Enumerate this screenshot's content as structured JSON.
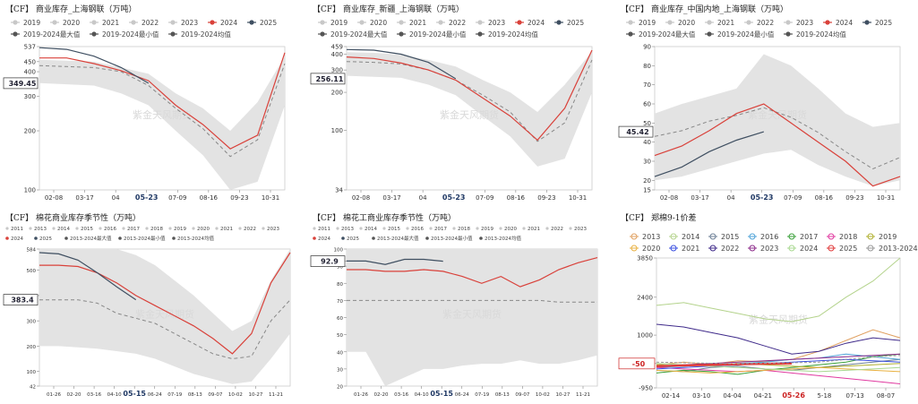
{
  "charts": [
    {
      "id": "c1",
      "title": "【CF】 商业库存_上海钢联（万吨）",
      "ytick_labels": [
        "537",
        "450",
        "400",
        "300",
        "200",
        "100"
      ],
      "current_label": "349.45",
      "xtick_labels": [
        "02-08",
        "03-17",
        "04",
        "05-23",
        "07-09",
        "08-16",
        "09-23",
        "10-31"
      ],
      "highlight_xtick": "05-23",
      "watermark": "紫金天风期货",
      "legend_row1": [
        "2019",
        "2020",
        "2021",
        "2022",
        "2023",
        "2024",
        "2025"
      ],
      "legend_row2": [
        "2019-2024最大值",
        "2019-2024最小值",
        "2019-2024均值"
      ]
    },
    {
      "id": "c2",
      "title": "【CF】 商业库存_新疆_上海钢联（万吨）",
      "ytick_labels": [
        "459",
        "400",
        "300",
        "200",
        "100",
        "34"
      ],
      "current_label": "256.11",
      "xtick_labels": [
        "02-08",
        "03-17",
        "04",
        "05-23",
        "07-09",
        "08-16",
        "09-23",
        "10-31"
      ],
      "highlight_xtick": "05-23",
      "watermark": "紫金天风期货",
      "legend_row1": [
        "2019",
        "2020",
        "2021",
        "2022",
        "2023",
        "2024",
        "2025"
      ],
      "legend_row2": [
        "2019-2024最大值",
        "2019-2024最小值",
        "2019-2024均值"
      ]
    },
    {
      "id": "c3",
      "title": "【CF】 商业库存_中国内地_上海钢联（万吨）",
      "ytick_labels": [
        "90",
        "80",
        "70",
        "60",
        "50",
        "40",
        "30",
        "20",
        "15"
      ],
      "current_label": "45.42",
      "xtick_labels": [
        "02-08",
        "03-17",
        "04",
        "05-23",
        "07-09",
        "08-16",
        "09-23",
        "10-31"
      ],
      "highlight_xtick": "05-23",
      "watermark": "紫金天风期货",
      "legend_row1": [
        "2019",
        "2020",
        "2021",
        "2022",
        "2023",
        "2024",
        "2025"
      ],
      "legend_row2": [
        "2019-2024最大值",
        "2019-2024最小值",
        "2019-2024均值"
      ]
    },
    {
      "id": "c4",
      "title": "【CF】 棉花商业库存季节性（万吨）",
      "ytick_labels": [
        "584",
        "500",
        "400",
        "300",
        "200",
        "100",
        "42"
      ],
      "current_label": "383.4",
      "xtick_labels": [
        "01-26",
        "02-20",
        "03-16",
        "04-10",
        "05-15",
        "06-24",
        "07-19",
        "08-13",
        "09-07",
        "10-02",
        "10-27",
        "11-21"
      ],
      "highlight_xtick": "05-15",
      "watermark": "紫金天风期货",
      "legend_row1": [
        "2011",
        "2013",
        "2014",
        "2015",
        "2016",
        "2017",
        "2018",
        "2019",
        "2020",
        "2021",
        "2022",
        "2023"
      ],
      "legend_row2": [
        "2024",
        "2025",
        "2013-2024最大值",
        "2013-2024最小值",
        "2013-2024均值"
      ]
    },
    {
      "id": "c5",
      "title": "【CF】 棉花工商业库存季节性（万吨）",
      "ytick_labels": [
        "100",
        "92.9",
        "90",
        "80",
        "70",
        "60",
        "50",
        "40",
        "30",
        "20"
      ],
      "current_label": "92.9",
      "xtick_labels": [
        "01-26",
        "02-20",
        "03-16",
        "04-10",
        "05-15",
        "06-24",
        "07-19",
        "08-13",
        "09-07",
        "10-02",
        "10-27",
        "11-21"
      ],
      "highlight_xtick": "05-15",
      "watermark": "紫金天风期货",
      "legend_row1": [
        "2011",
        "2013",
        "2014",
        "2015",
        "2016",
        "2017",
        "2018",
        "2019",
        "2020",
        "2021",
        "2022",
        "2023"
      ],
      "legend_row2": [
        "2024",
        "2025",
        "2013-2024最大值",
        "2013-2024最小值",
        "2013-2024均值"
      ]
    },
    {
      "id": "c6",
      "title": "【CF】 郑棉9-1价差",
      "ytick_labels": [
        "3850",
        "2400",
        "1000",
        "-50",
        "-950"
      ],
      "current_label": "-50",
      "xtick_labels": [
        "02-14",
        "03-10",
        "04-04",
        "04-21",
        "05-26",
        "5-18",
        "07-13",
        "08-07"
      ],
      "highlight_xtick": "05-26",
      "watermark": "紫金天风期货",
      "legend_items": [
        "2013",
        "2014",
        "2015",
        "2016",
        "2017",
        "2018",
        "2019",
        "2020",
        "2021",
        "2022",
        "2023",
        "2024",
        "2025",
        "2013-2024均值"
      ]
    }
  ],
  "colors": {
    "s2024": "#d9413a",
    "s2025": "#3f4f61",
    "avg": "#888888",
    "band": "#e3e3e3",
    "muted_legend": "#c8c8c8"
  },
  "chart_data": [
    {
      "type": "line",
      "x": [
        "01-01",
        "02-08",
        "03-17",
        "04-20",
        "05-23",
        "07-09",
        "08-16",
        "09-23",
        "10-31",
        "12-31"
      ],
      "ylim": [
        100,
        537
      ],
      "yscale": "log",
      "series": [
        {
          "name": "2024",
          "values": [
            470,
            470,
            440,
            405,
            360,
            270,
            215,
            162,
            190,
            500
          ]
        },
        {
          "name": "2025",
          "values": [
            530,
            520,
            480,
            420,
            349.45,
            null,
            null,
            null,
            null,
            null
          ]
        },
        {
          "name": "2019-2024最大值",
          "values": [
            460,
            455,
            450,
            420,
            390,
            310,
            260,
            200,
            280,
            480
          ]
        },
        {
          "name": "2019-2024最小值",
          "values": [
            350,
            345,
            340,
            310,
            270,
            200,
            150,
            100,
            110,
            270
          ]
        },
        {
          "name": "2019-2024均值",
          "values": [
            430,
            425,
            420,
            400,
            340,
            260,
            205,
            148,
            180,
            440
          ]
        }
      ]
    },
    {
      "type": "line",
      "x": [
        "01-01",
        "02-08",
        "03-17",
        "04-20",
        "05-23",
        "07-09",
        "08-16",
        "09-23",
        "10-31",
        "12-31"
      ],
      "ylim": [
        34,
        459
      ],
      "yscale": "log",
      "series": [
        {
          "name": "2024",
          "values": [
            380,
            370,
            340,
            300,
            250,
            180,
            130,
            84,
            150,
            430
          ]
        },
        {
          "name": "2025",
          "values": [
            435,
            430,
            400,
            345,
            256.11,
            null,
            null,
            null,
            null,
            null
          ]
        },
        {
          "name": "2019-2024最大值",
          "values": [
            415,
            410,
            395,
            360,
            320,
            250,
            200,
            140,
            230,
            420
          ]
        },
        {
          "name": "2019-2024最小值",
          "values": [
            270,
            265,
            260,
            230,
            190,
            130,
            90,
            52,
            60,
            200
          ]
        },
        {
          "name": "2019-2024均值",
          "values": [
            350,
            345,
            335,
            300,
            250,
            190,
            140,
            82,
            115,
            360
          ]
        }
      ]
    },
    {
      "type": "line",
      "x": [
        "01-01",
        "02-08",
        "03-17",
        "04-20",
        "05-23",
        "07-09",
        "08-16",
        "09-23",
        "10-31",
        "12-31"
      ],
      "ylim": [
        15,
        90
      ],
      "series": [
        {
          "name": "2024",
          "values": [
            33,
            38,
            46,
            55,
            60,
            50,
            40,
            30,
            17,
            22
          ]
        },
        {
          "name": "2025",
          "values": [
            22,
            27,
            35,
            41,
            45.42,
            null,
            null,
            null,
            null,
            null
          ]
        },
        {
          "name": "2019-2024最大值",
          "values": [
            55,
            60,
            64,
            68,
            86,
            80,
            68,
            55,
            48,
            50
          ]
        },
        {
          "name": "2019-2024最小值",
          "values": [
            20,
            22,
            26,
            30,
            34,
            36,
            28,
            22,
            17,
            20
          ]
        },
        {
          "name": "2019-2024均值",
          "values": [
            43,
            46,
            51,
            54,
            58,
            53,
            45,
            35,
            26,
            32
          ]
        }
      ]
    },
    {
      "type": "line",
      "x": [
        "01-01",
        "01-26",
        "02-20",
        "03-16",
        "04-10",
        "05-15",
        "06-24",
        "07-19",
        "08-13",
        "09-07",
        "10-02",
        "10-27",
        "11-21",
        "12-31"
      ],
      "ylim": [
        42,
        584
      ],
      "series": [
        {
          "name": "2024",
          "values": [
            520,
            520,
            515,
            490,
            450,
            400,
            360,
            320,
            280,
            230,
            170,
            250,
            450,
            570
          ]
        },
        {
          "name": "2025",
          "values": [
            570,
            565,
            540,
            490,
            435,
            383.4,
            null,
            null,
            null,
            null,
            null,
            null,
            null,
            null
          ]
        },
        {
          "name": "2013-2024最大值",
          "values": [
            584,
            584,
            584,
            584,
            584,
            560,
            520,
            460,
            400,
            330,
            260,
            300,
            460,
            584
          ]
        },
        {
          "name": "2013-2024最小值",
          "values": [
            200,
            200,
            195,
            190,
            180,
            170,
            150,
            120,
            90,
            70,
            50,
            60,
            150,
            250
          ]
        },
        {
          "name": "2013-2024均值",
          "values": [
            383,
            383,
            383,
            370,
            330,
            310,
            290,
            250,
            210,
            170,
            150,
            160,
            300,
            383
          ]
        }
      ]
    },
    {
      "type": "line",
      "x": [
        "01-01",
        "01-26",
        "02-20",
        "03-16",
        "04-10",
        "05-15",
        "06-24",
        "07-19",
        "08-13",
        "09-07",
        "10-02",
        "10-27",
        "11-21",
        "12-31"
      ],
      "ylim": [
        20,
        100
      ],
      "series": [
        {
          "name": "2024",
          "values": [
            88,
            88,
            87,
            87,
            88,
            87,
            84,
            80,
            84,
            78,
            82,
            88,
            92,
            95
          ]
        },
        {
          "name": "2025",
          "values": [
            93,
            93,
            91,
            94,
            94,
            92.9,
            null,
            null,
            null,
            null,
            null,
            null,
            null,
            null
          ]
        },
        {
          "name": "2013-2024最大值",
          "values": [
            100,
            100,
            100,
            100,
            100,
            100,
            100,
            100,
            100,
            100,
            100,
            100,
            100,
            100
          ]
        },
        {
          "name": "2013-2024最小值",
          "values": [
            40,
            40,
            20,
            25,
            30,
            30,
            32,
            33,
            33,
            35,
            33,
            33,
            35,
            38
          ]
        },
        {
          "name": "2013-2024均值",
          "values": [
            70,
            70,
            70,
            70,
            70,
            70,
            70,
            70,
            70,
            70,
            70,
            69,
            69,
            69
          ]
        }
      ]
    },
    {
      "type": "line",
      "x": [
        "01-20",
        "02-14",
        "03-10",
        "04-04",
        "04-21",
        "05-26",
        "5-18",
        "07-13",
        "08-07",
        "08-31"
      ],
      "ylim": [
        -950,
        3850
      ],
      "series": [
        {
          "name": "2013",
          "values": [
            -100,
            0,
            -80,
            50,
            20,
            100,
            400,
            800,
            1200,
            900
          ]
        },
        {
          "name": "2014",
          "values": [
            2100,
            2200,
            2000,
            1800,
            1600,
            1500,
            1700,
            2400,
            3000,
            3850
          ]
        },
        {
          "name": "2015",
          "values": [
            -300,
            -350,
            -200,
            -150,
            -250,
            -300,
            -200,
            -100,
            0,
            100
          ]
        },
        {
          "name": "2016",
          "values": [
            -200,
            -150,
            -100,
            -50,
            0,
            100,
            150,
            300,
            200,
            100
          ]
        },
        {
          "name": "2017",
          "values": [
            -400,
            -300,
            -350,
            -450,
            -300,
            -200,
            -100,
            0,
            200,
            300
          ]
        },
        {
          "name": "2018",
          "values": [
            -200,
            -250,
            -300,
            -350,
            -300,
            -400,
            -500,
            -600,
            -700,
            -800
          ]
        },
        {
          "name": "2019",
          "values": [
            -100,
            -150,
            -100,
            -50,
            -100,
            -150,
            -200,
            -150,
            -100,
            -50
          ]
        },
        {
          "name": "2020",
          "values": [
            -300,
            -350,
            -400,
            -350,
            -300,
            -250,
            -200,
            -250,
            -300,
            -350
          ]
        },
        {
          "name": "2021",
          "values": [
            -250,
            -200,
            -150,
            -100,
            -50,
            0,
            50,
            100,
            50,
            0
          ]
        },
        {
          "name": "2022",
          "values": [
            1400,
            1300,
            1100,
            900,
            600,
            300,
            400,
            700,
            900,
            800
          ]
        },
        {
          "name": "2023",
          "values": [
            -150,
            -100,
            -50,
            0,
            50,
            100,
            150,
            200,
            250,
            300
          ]
        },
        {
          "name": "2024",
          "values": [
            -50,
            -100,
            -150,
            -200,
            -250,
            -300,
            -350,
            -300,
            -250,
            -200
          ]
        },
        {
          "name": "2025",
          "values": [
            -150,
            -120,
            -100,
            -80,
            -60,
            -50,
            null,
            null,
            null,
            null
          ]
        },
        {
          "name": "2013-2024均值",
          "values": [
            0,
            -20,
            -40,
            -60,
            -40,
            -20,
            0,
            100,
            200,
            250
          ]
        }
      ]
    }
  ]
}
